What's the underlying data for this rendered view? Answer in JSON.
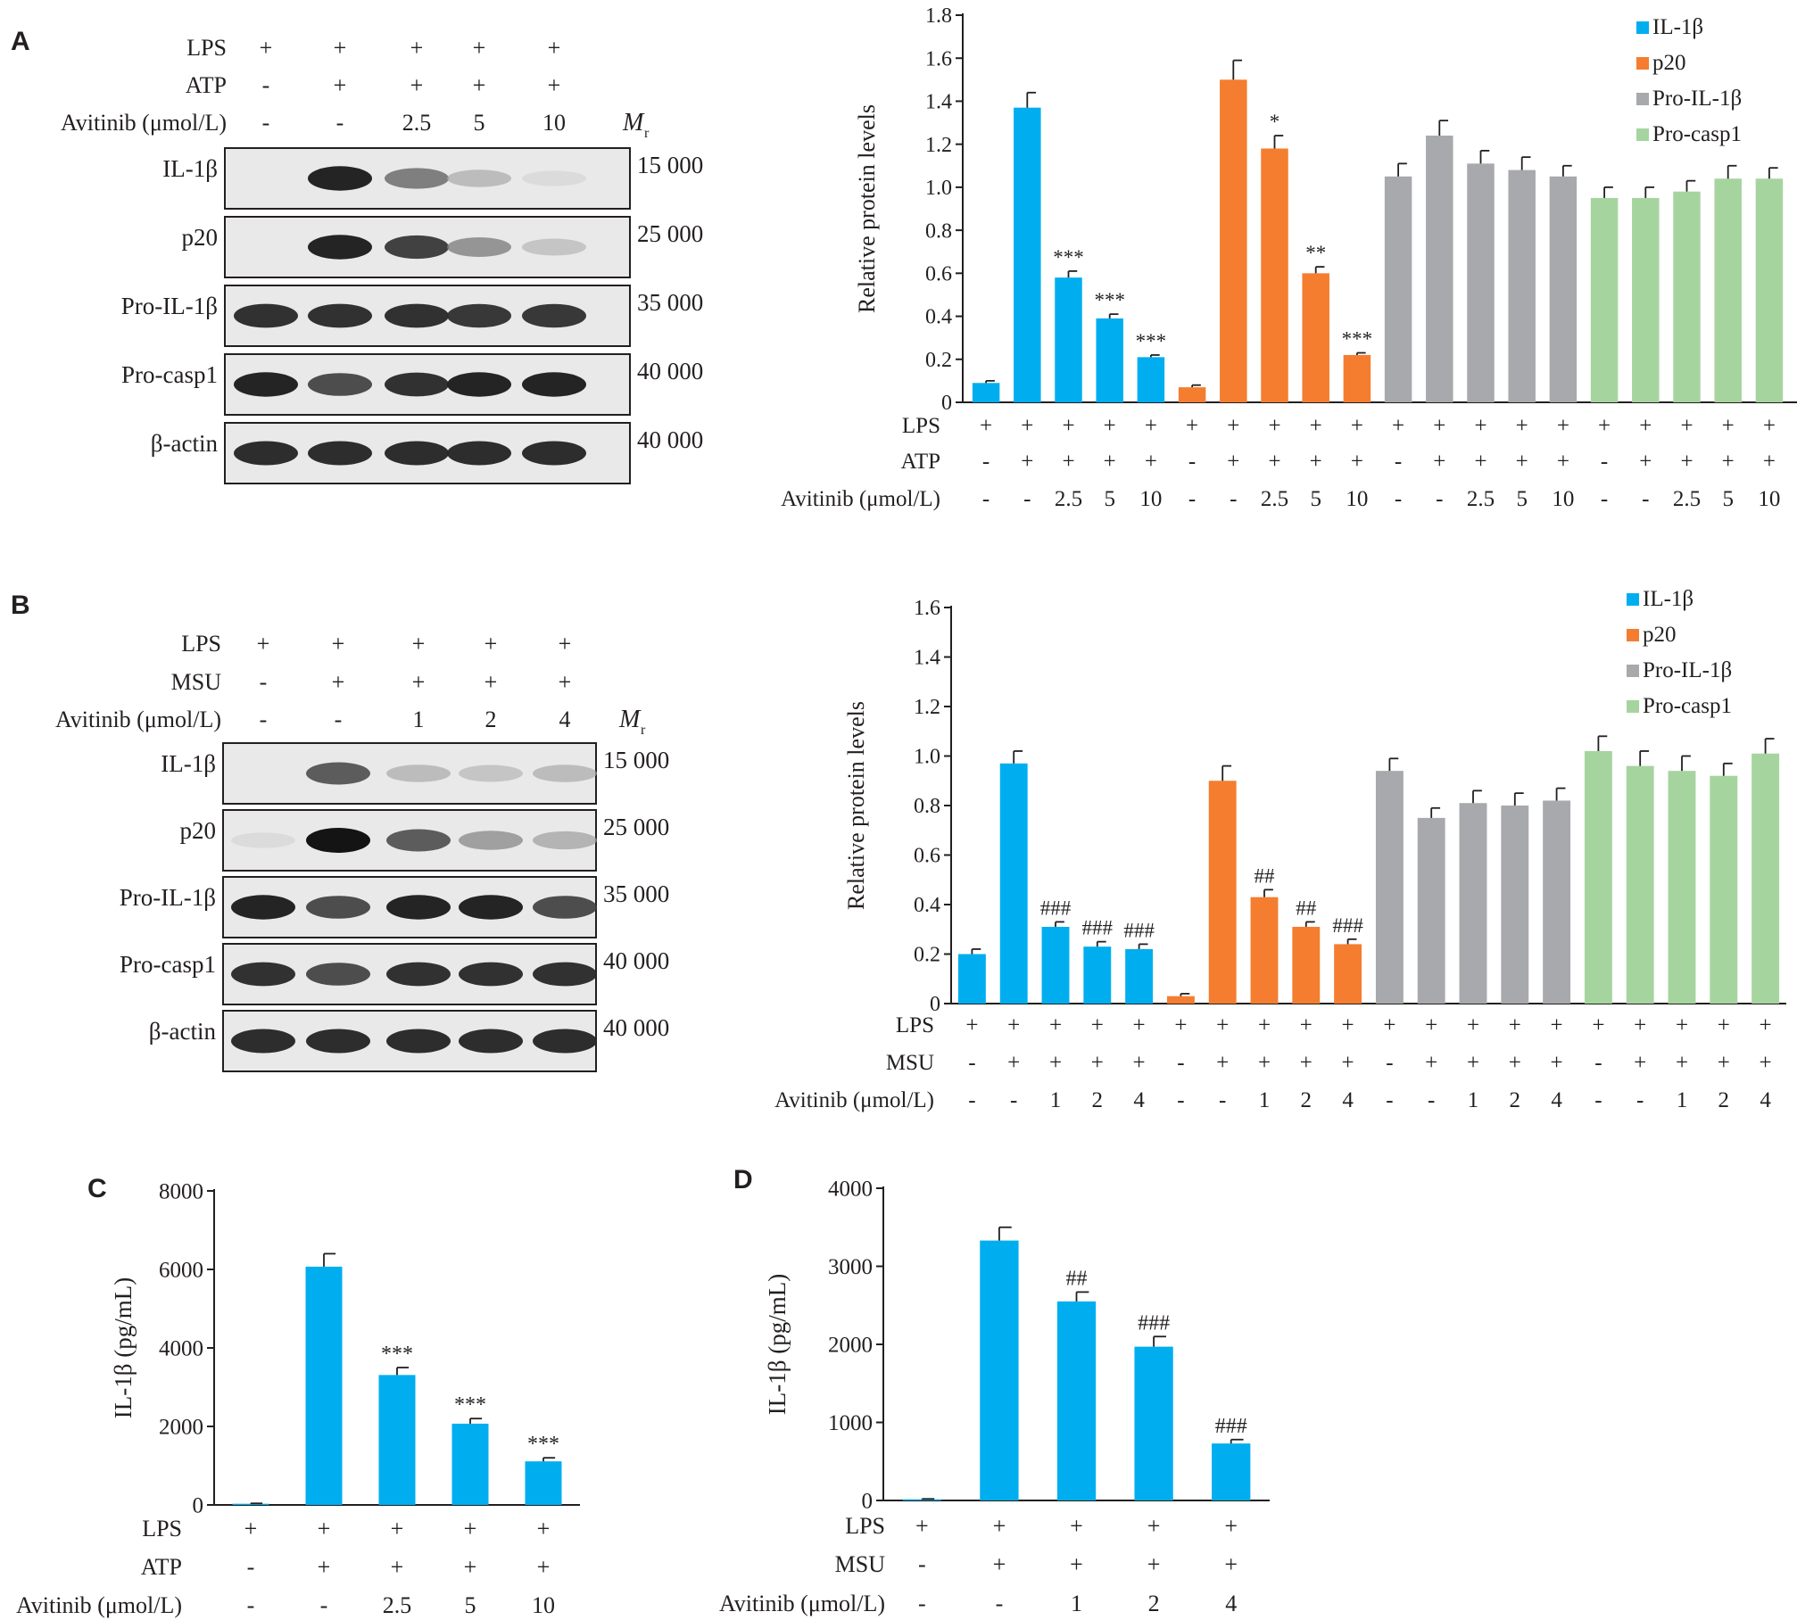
{
  "panels": {
    "A": {
      "letter": "A",
      "blot": {
        "treatment_rows": [
          {
            "label": "LPS",
            "values": [
              "+",
              "+",
              "+",
              "+",
              "+"
            ]
          },
          {
            "label": "ATP",
            "values": [
              "-",
              "+",
              "+",
              "+",
              "+"
            ]
          },
          {
            "label": "Avitinib (μmol/L)",
            "values": [
              "-",
              "-",
              "2.5",
              "5",
              "10"
            ]
          }
        ],
        "mr_label": "M",
        "mr_sub": "r",
        "bands": [
          {
            "name": "IL-1β",
            "mr": "15 000",
            "intensity": [
              0.0,
              0.95,
              0.6,
              0.3,
              0.1
            ]
          },
          {
            "name": "p20",
            "mr": "25 000",
            "intensity": [
              0.0,
              0.95,
              0.85,
              0.5,
              0.25
            ]
          },
          {
            "name": "Pro-IL-1β",
            "mr": "35 000",
            "intensity": [
              0.9,
              0.9,
              0.9,
              0.88,
              0.88
            ]
          },
          {
            "name": "Pro-casp1",
            "mr": "40 000",
            "intensity": [
              0.95,
              0.8,
              0.9,
              0.95,
              0.95
            ]
          },
          {
            "name": "β-actin",
            "mr": "40 000",
            "intensity": [
              0.92,
              0.92,
              0.92,
              0.92,
              0.92
            ]
          }
        ]
      }
    },
    "B": {
      "letter": "B",
      "blot": {
        "treatment_rows": [
          {
            "label": "LPS",
            "values": [
              "+",
              "+",
              "+",
              "+",
              "+"
            ]
          },
          {
            "label": "MSU",
            "values": [
              "-",
              "+",
              "+",
              "+",
              "+"
            ]
          },
          {
            "label": "Avitinib (μmol/L)",
            "values": [
              "-",
              "-",
              "1",
              "2",
              "4"
            ]
          }
        ],
        "mr_label": "M",
        "mr_sub": "r",
        "bands": [
          {
            "name": "IL-1β",
            "mr": "15 000",
            "intensity": [
              0.0,
              0.75,
              0.3,
              0.25,
              0.3
            ]
          },
          {
            "name": "p20",
            "mr": "25 000",
            "intensity": [
              0.1,
              1.0,
              0.75,
              0.45,
              0.35
            ]
          },
          {
            "name": "Pro-IL-1β",
            "mr": "35 000",
            "intensity": [
              0.95,
              0.8,
              0.95,
              0.95,
              0.8
            ]
          },
          {
            "name": "Pro-casp1",
            "mr": "40 000",
            "intensity": [
              0.9,
              0.8,
              0.9,
              0.9,
              0.9
            ]
          },
          {
            "name": "β-actin",
            "mr": "40 000",
            "intensity": [
              0.92,
              0.92,
              0.92,
              0.92,
              0.92
            ]
          }
        ]
      }
    },
    "C": {
      "letter": "C"
    },
    "D": {
      "letter": "D"
    }
  },
  "chart_data": [
    {
      "id": "A-bar",
      "type": "bar",
      "ylabel": "Relative protein levels",
      "ylim": [
        0,
        1.8
      ],
      "yticks": [
        "0",
        "0.2",
        "0.4",
        "0.6",
        "0.8",
        "1.0",
        "1.2",
        "1.4",
        "1.6",
        "1.8"
      ],
      "legend": "top-right",
      "series": [
        {
          "name": "IL-1β",
          "color": "#00aeef",
          "values": [
            0.09,
            1.37,
            0.58,
            0.39,
            0.21
          ],
          "errors": [
            0.01,
            0.07,
            0.03,
            0.02,
            0.01
          ],
          "sig": [
            "",
            "",
            "***",
            "***",
            "***"
          ]
        },
        {
          "name": "p20",
          "color": "#f47d30",
          "values": [
            0.07,
            1.5,
            1.18,
            0.6,
            0.22
          ],
          "errors": [
            0.01,
            0.09,
            0.06,
            0.03,
            0.01
          ],
          "sig": [
            "",
            "",
            "*",
            "**",
            "***"
          ]
        },
        {
          "name": "Pro-IL-1β",
          "color": "#a7a9ac",
          "values": [
            1.05,
            1.24,
            1.11,
            1.08,
            1.05
          ],
          "errors": [
            0.06,
            0.07,
            0.06,
            0.06,
            0.05
          ],
          "sig": [
            "",
            "",
            "",
            "",
            ""
          ]
        },
        {
          "name": "Pro-casp1",
          "color": "#a6d49f",
          "values": [
            0.95,
            0.95,
            0.98,
            1.04,
            1.04
          ],
          "errors": [
            0.05,
            0.05,
            0.05,
            0.06,
            0.05
          ],
          "sig": [
            "",
            "",
            "",
            "",
            ""
          ]
        }
      ],
      "treatment_rows": [
        {
          "label": "LPS",
          "values": [
            "+",
            "+",
            "+",
            "+",
            "+"
          ]
        },
        {
          "label": "ATP",
          "values": [
            "-",
            "+",
            "+",
            "+",
            "+"
          ]
        },
        {
          "label": "Avitinib (μmol/L)",
          "values": [
            "-",
            "-",
            "2.5",
            "5",
            "10"
          ]
        }
      ]
    },
    {
      "id": "B-bar",
      "type": "bar",
      "ylabel": "Relative protein levels",
      "ylim": [
        0,
        1.6
      ],
      "yticks": [
        "0",
        "0.2",
        "0.4",
        "0.6",
        "0.8",
        "1.0",
        "1.2",
        "1.4",
        "1.6"
      ],
      "legend": "top-right",
      "series": [
        {
          "name": "IL-1β",
          "color": "#00aeef",
          "values": [
            0.2,
            0.97,
            0.31,
            0.23,
            0.22
          ],
          "errors": [
            0.02,
            0.05,
            0.02,
            0.02,
            0.02
          ],
          "sig": [
            "",
            "",
            "###",
            "###",
            "###"
          ]
        },
        {
          "name": "p20",
          "color": "#f47d30",
          "values": [
            0.03,
            0.9,
            0.43,
            0.31,
            0.24
          ],
          "errors": [
            0.01,
            0.06,
            0.03,
            0.02,
            0.02
          ],
          "sig": [
            "",
            "",
            "##",
            "##",
            "###"
          ]
        },
        {
          "name": "Pro-IL-1β",
          "color": "#a7a9ac",
          "values": [
            0.94,
            0.75,
            0.81,
            0.8,
            0.82
          ],
          "errors": [
            0.05,
            0.04,
            0.05,
            0.05,
            0.05
          ],
          "sig": [
            "",
            "",
            "",
            "",
            ""
          ]
        },
        {
          "name": "Pro-casp1",
          "color": "#a6d49f",
          "values": [
            1.02,
            0.96,
            0.94,
            0.92,
            1.01
          ],
          "errors": [
            0.06,
            0.06,
            0.06,
            0.05,
            0.06
          ],
          "sig": [
            "",
            "",
            "",
            "",
            ""
          ]
        }
      ],
      "treatment_rows": [
        {
          "label": "LPS",
          "values": [
            "+",
            "+",
            "+",
            "+",
            "+"
          ]
        },
        {
          "label": "MSU",
          "values": [
            "-",
            "+",
            "+",
            "+",
            "+"
          ]
        },
        {
          "label": "Avitinib (μmol/L)",
          "values": [
            "-",
            "-",
            "1",
            "2",
            "4"
          ]
        }
      ]
    },
    {
      "id": "C-bar",
      "type": "bar",
      "ylabel": "IL-1β (pg/mL)",
      "ylim": [
        0,
        8000
      ],
      "yticks": [
        "0",
        "2000",
        "4000",
        "6000",
        "8000"
      ],
      "series": [
        {
          "name": "IL-1β",
          "color": "#00aeef",
          "values": [
            30,
            6070,
            3310,
            2070,
            1110
          ],
          "errors": [
            10,
            330,
            190,
            130,
            90
          ],
          "sig": [
            "",
            "",
            "***",
            "***",
            "***"
          ]
        }
      ],
      "treatment_rows": [
        {
          "label": "LPS",
          "values": [
            "+",
            "+",
            "+",
            "+",
            "+"
          ]
        },
        {
          "label": "ATP",
          "values": [
            "-",
            "+",
            "+",
            "+",
            "+"
          ]
        },
        {
          "label": "Avitinib (μmol/L)",
          "values": [
            "-",
            "-",
            "2.5",
            "5",
            "10"
          ]
        }
      ]
    },
    {
      "id": "D-bar",
      "type": "bar",
      "ylabel": "IL-1β (pg/mL)",
      "ylim": [
        0,
        4000
      ],
      "yticks": [
        "0",
        "1000",
        "2000",
        "3000",
        "4000"
      ],
      "series": [
        {
          "name": "IL-1β",
          "color": "#00aeef",
          "values": [
            15,
            3330,
            2550,
            1970,
            730
          ],
          "errors": [
            5,
            170,
            120,
            130,
            50
          ],
          "sig": [
            "",
            "",
            "##",
            "###",
            "###"
          ]
        }
      ],
      "treatment_rows": [
        {
          "label": "LPS",
          "values": [
            "+",
            "+",
            "+",
            "+",
            "+"
          ]
        },
        {
          "label": "MSU",
          "values": [
            "-",
            "+",
            "+",
            "+",
            "+"
          ]
        },
        {
          "label": "Avitinib (μmol/L)",
          "values": [
            "-",
            "-",
            "1",
            "2",
            "4"
          ]
        }
      ]
    }
  ]
}
